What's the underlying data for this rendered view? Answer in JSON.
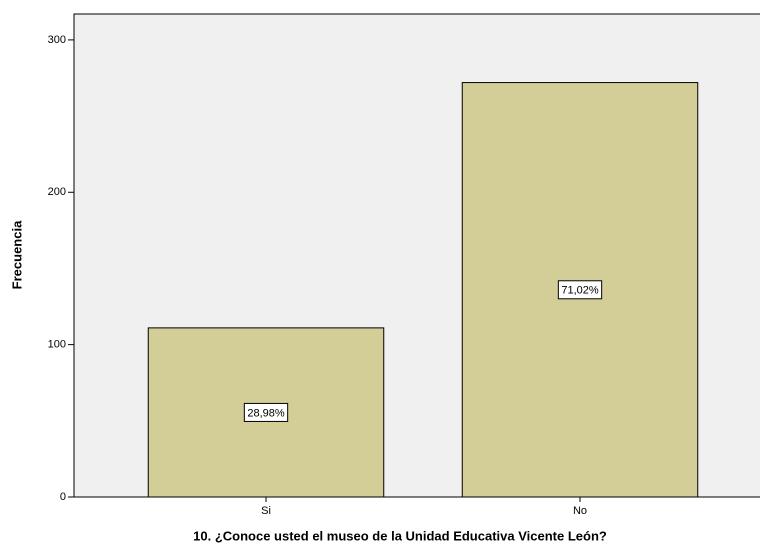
{
  "chart_data": {
    "type": "bar",
    "x_label": "10. ¿Conoce usted el museo de la Unidad Educativa Vicente León?",
    "y_label": "Frecuencia",
    "categories": [
      "Si",
      "No"
    ],
    "values": [
      111,
      272
    ],
    "data_labels": [
      "28,98%",
      "71,02%"
    ],
    "color": "#d3cd98",
    "ylim": [
      0,
      317
    ],
    "yticks": [
      0,
      100,
      200,
      300
    ]
  }
}
